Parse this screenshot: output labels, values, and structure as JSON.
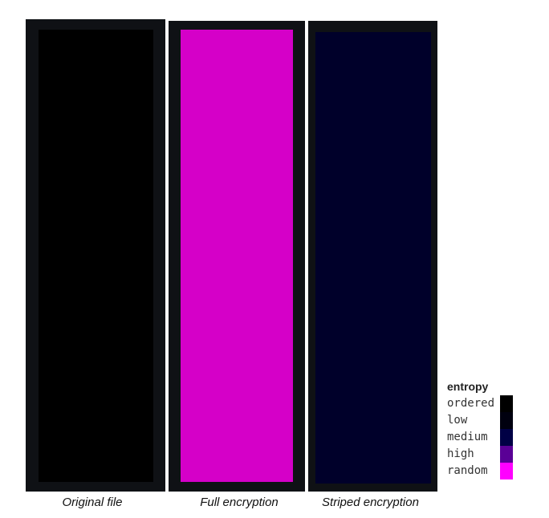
{
  "panels": [
    {
      "caption": "Original file",
      "color": "#000000"
    },
    {
      "caption": "Full encryption",
      "color": "#d500c8"
    },
    {
      "caption": "Striped encryption",
      "color": "#00002a"
    }
  ],
  "legend": {
    "title": "entropy",
    "items": [
      {
        "label": "ordered",
        "color": "#000000"
      },
      {
        "label": "low",
        "color": "#00000f"
      },
      {
        "label": "medium",
        "color": "#000045"
      },
      {
        "label": "high",
        "color": "#5a0096"
      },
      {
        "label": "random",
        "color": "#ff00ff"
      }
    ]
  }
}
